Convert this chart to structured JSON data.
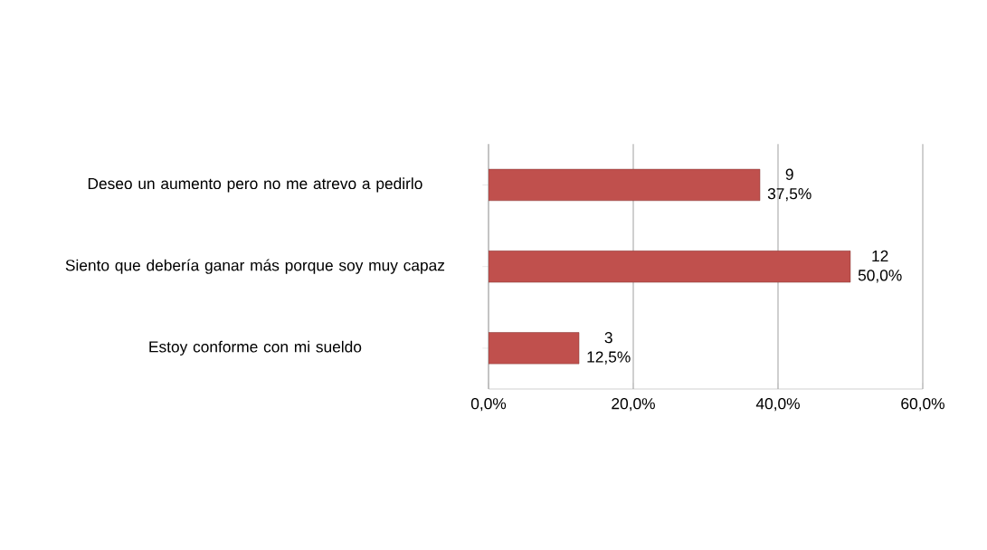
{
  "chart_data": {
    "type": "bar",
    "orientation": "horizontal",
    "categories": [
      "Deseo un aumento pero no me atrevo a pedirlo",
      "Siento que debería ganar más porque soy muy capaz",
      "Estoy conforme con mi sueldo"
    ],
    "values": [
      37.5,
      50,
      12.5
    ],
    "color": "#c0504d",
    "value_labels": [
      "9 37,5%",
      "12 50,0%",
      "3 12,5%"
    ],
    "xlim": [
      0,
      60
    ],
    "xticks": [
      {
        "value": 0,
        "label": "0,0%"
      },
      {
        "value": 20,
        "label": "20,0%"
      },
      {
        "value": 40,
        "label": "40,0%"
      },
      {
        "value": 60,
        "label": "60,0%"
      }
    ],
    "grid": "x"
  }
}
